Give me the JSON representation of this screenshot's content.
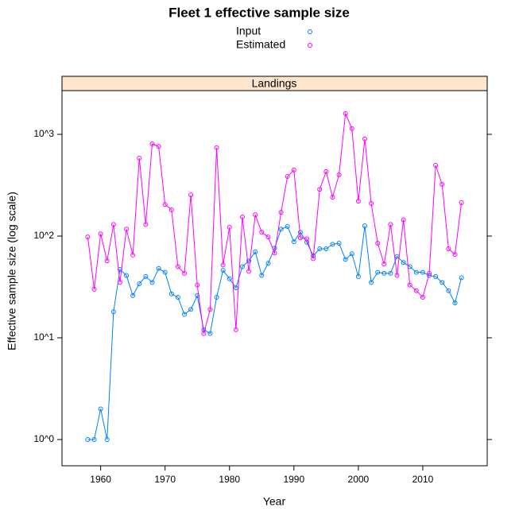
{
  "chart_data": {
    "type": "line",
    "title": "Fleet 1 effective sample size",
    "strip": "Landings",
    "x_label": "Year",
    "y_label": "Effective sample size (log scale)",
    "log_scale": true,
    "legend": "top",
    "x": [
      1958,
      1959,
      1960,
      1961,
      1962,
      1963,
      1964,
      1965,
      1966,
      1967,
      1968,
      1969,
      1970,
      1971,
      1972,
      1973,
      1974,
      1975,
      1976,
      1977,
      1978,
      1979,
      1980,
      1981,
      1982,
      1983,
      1984,
      1985,
      1986,
      1987,
      1988,
      1989,
      1990,
      1991,
      1992,
      1993,
      1994,
      1995,
      1996,
      1997,
      1998,
      1999,
      2000,
      2001,
      2002,
      2003,
      2004,
      2005,
      2006,
      2007,
      2008,
      2009,
      2010,
      2011,
      2012,
      2013,
      2014,
      2015,
      2016
    ],
    "series": [
      {
        "name": "Input",
        "color": "#0080ff",
        "values": [
          1,
          1,
          2,
          1,
          18,
          47,
          41,
          26,
          34,
          40,
          35,
          48,
          44,
          27,
          25,
          17,
          19,
          26,
          12,
          11,
          25,
          46,
          38,
          31,
          50,
          57,
          70,
          41,
          54,
          76,
          117,
          124,
          88,
          109,
          87,
          64,
          75,
          75,
          83,
          85,
          59,
          67,
          40,
          126,
          35,
          44,
          43,
          43,
          63,
          55,
          50,
          44,
          44,
          41,
          40,
          35,
          29,
          22,
          39
        ]
      },
      {
        "name": "Estimated",
        "color": "#ff00ff",
        "values": [
          98,
          30,
          105,
          57,
          130,
          35,
          117,
          65,
          583,
          130,
          806,
          760,
          205,
          181,
          50,
          43,
          254,
          33,
          11,
          19,
          740,
          52,
          122,
          12,
          154,
          45,
          162,
          109,
          98,
          68,
          171,
          385,
          446,
          96,
          94,
          60,
          288,
          430,
          241,
          400,
          1600,
          1140,
          220,
          900,
          209,
          85,
          53,
          130,
          41,
          145,
          33,
          29,
          25,
          43,
          496,
          322,
          75,
          66,
          213
        ]
      }
    ],
    "xlim": [
      1954,
      2020
    ],
    "ylim": [
      0.552,
      2690
    ],
    "xticks": [
      1960,
      1970,
      1980,
      1990,
      2000,
      2010
    ],
    "yticks": [
      {
        "value": 1,
        "label": "10^0"
      },
      {
        "value": 10,
        "label": "10^1"
      },
      {
        "value": 100,
        "label": "10^2"
      },
      {
        "value": 1000,
        "label": "10^3"
      }
    ]
  }
}
